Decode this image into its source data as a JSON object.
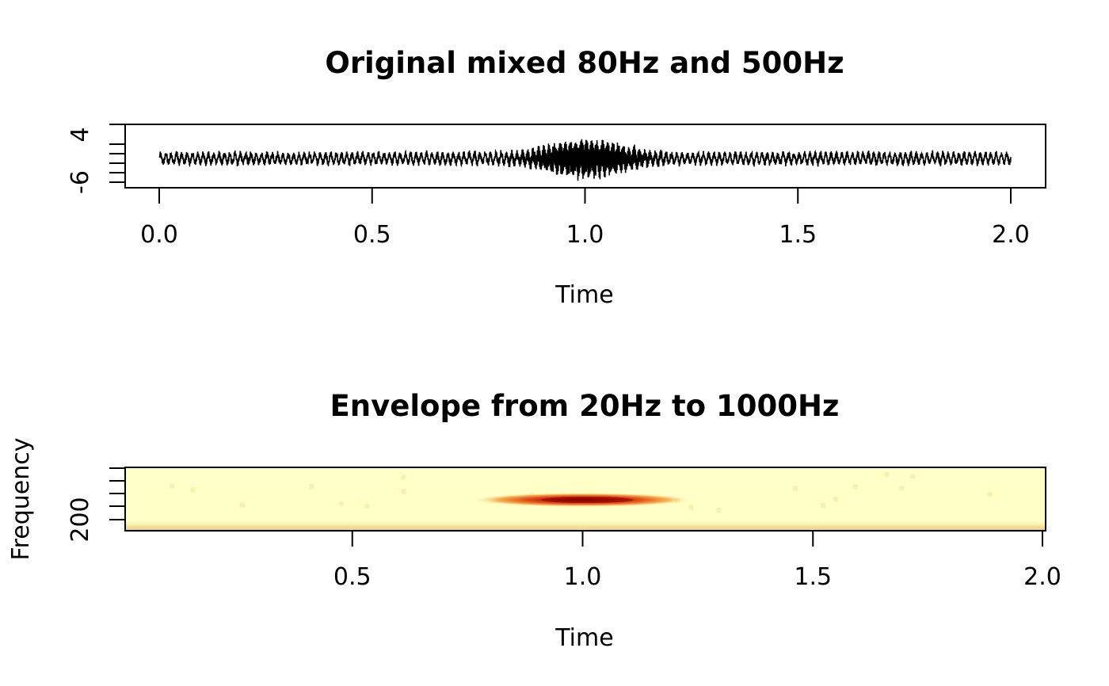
{
  "chart_data": [
    {
      "type": "line",
      "title": "Original mixed 80Hz and 500Hz",
      "xlabel": "Time",
      "ylabel": "",
      "xlim": [
        0,
        2.0
      ],
      "ylim": [
        -6,
        4
      ],
      "x_ticks": [
        "0.0",
        "0.5",
        "1.0",
        "1.5",
        "2.0"
      ],
      "y_tick_labels": [
        "-6",
        "4"
      ],
      "series": [
        {
          "description_values": {
            "t": [
              0,
              0.1,
              0.2,
              0.3,
              0.4,
              0.5,
              0.6,
              0.7,
              0.8,
              0.85,
              0.9,
              0.95,
              1.0,
              1.05,
              1.1,
              1.15,
              1.2,
              1.3,
              1.4,
              1.5,
              1.6,
              1.7,
              1.8,
              1.9,
              2.0
            ],
            "envelope": [
              1.4,
              1.4,
              1.4,
              1.4,
              1.4,
              1.4,
              1.4,
              1.4,
              1.5,
              1.9,
              3.0,
              4.2,
              4.8,
              4.2,
              3.0,
              1.9,
              1.5,
              1.4,
              1.4,
              1.4,
              1.4,
              1.4,
              1.4,
              1.4,
              1.4
            ]
          }
        }
      ]
    },
    {
      "type": "heatmap",
      "title": "Envelope from 20Hz to 1000Hz",
      "xlabel": "Time",
      "ylabel": "Frequency",
      "xlim": [
        0,
        2.0
      ],
      "x_ticks": [
        "0.5",
        "1.0",
        "1.5",
        "2.0"
      ],
      "y_ticks": [
        "200"
      ],
      "colors": {
        "low": "#ffffc8",
        "mid": "#f5a63c",
        "high": "#8b0000"
      },
      "hotspot": {
        "time_center": 1.0,
        "time_halfwidth": 0.15,
        "frequency": 500
      },
      "baseline_frequency": 80
    }
  ]
}
